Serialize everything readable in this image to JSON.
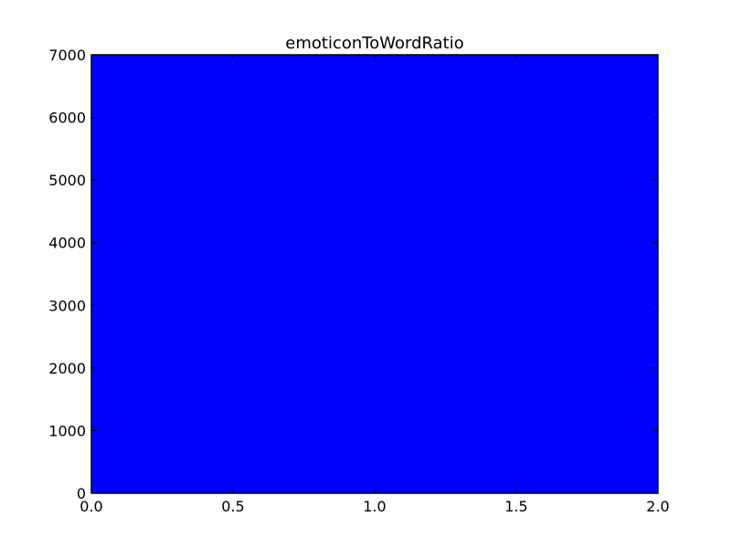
{
  "chart_data": {
    "type": "bar",
    "title": "emoticonToWordRatio",
    "xlabel": "",
    "ylabel": "",
    "xlim": [
      0.0,
      2.0
    ],
    "ylim": [
      0,
      7000
    ],
    "x_ticks": [
      "0.0",
      "0.5",
      "1.0",
      "1.5",
      "2.0"
    ],
    "y_ticks": [
      "0",
      "1000",
      "2000",
      "3000",
      "4000",
      "5000",
      "6000",
      "7000"
    ],
    "bars": [
      {
        "x_start": 0.0,
        "x_end": 2.0,
        "value": 7000
      }
    ],
    "bar_color": "#0000ff",
    "grid": false,
    "legend": "none"
  }
}
